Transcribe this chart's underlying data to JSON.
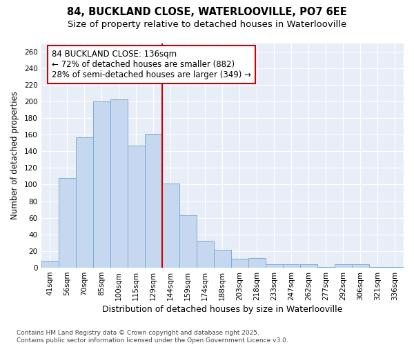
{
  "title": "84, BUCKLAND CLOSE, WATERLOOVILLE, PO7 6EE",
  "subtitle": "Size of property relative to detached houses in Waterlooville",
  "xlabel": "Distribution of detached houses by size in Waterlooville",
  "ylabel": "Number of detached properties",
  "categories": [
    "41sqm",
    "56sqm",
    "70sqm",
    "85sqm",
    "100sqm",
    "115sqm",
    "129sqm",
    "144sqm",
    "159sqm",
    "174sqm",
    "188sqm",
    "203sqm",
    "218sqm",
    "233sqm",
    "247sqm",
    "262sqm",
    "277sqm",
    "292sqm",
    "306sqm",
    "321sqm",
    "336sqm"
  ],
  "values": [
    8,
    108,
    157,
    200,
    202,
    147,
    161,
    101,
    63,
    32,
    22,
    11,
    12,
    4,
    4,
    4,
    1,
    4,
    4,
    1,
    1
  ],
  "bar_color": "#c5d8f0",
  "bar_edge_color": "#7aaed6",
  "vline_x_idx": 6.5,
  "vline_color": "#cc0000",
  "annotation_line1": "84 BUCKLAND CLOSE: 136sqm",
  "annotation_line2": "← 72% of detached houses are smaller (882)",
  "annotation_line3": "28% of semi-detached houses are larger (349) →",
  "annotation_box_color": "#cc0000",
  "ylim": [
    0,
    270
  ],
  "yticks": [
    0,
    20,
    40,
    60,
    80,
    100,
    120,
    140,
    160,
    180,
    200,
    220,
    240,
    260
  ],
  "fig_bg_color": "#ffffff",
  "plot_bg_color": "#e8eef8",
  "grid_color": "#ffffff",
  "footer": "Contains HM Land Registry data © Crown copyright and database right 2025.\nContains public sector information licensed under the Open Government Licence v3.0.",
  "title_fontsize": 10.5,
  "subtitle_fontsize": 9.5,
  "xlabel_fontsize": 9,
  "ylabel_fontsize": 8.5,
  "tick_fontsize": 7.5,
  "footer_fontsize": 6.5,
  "annotation_fontsize": 8.5
}
